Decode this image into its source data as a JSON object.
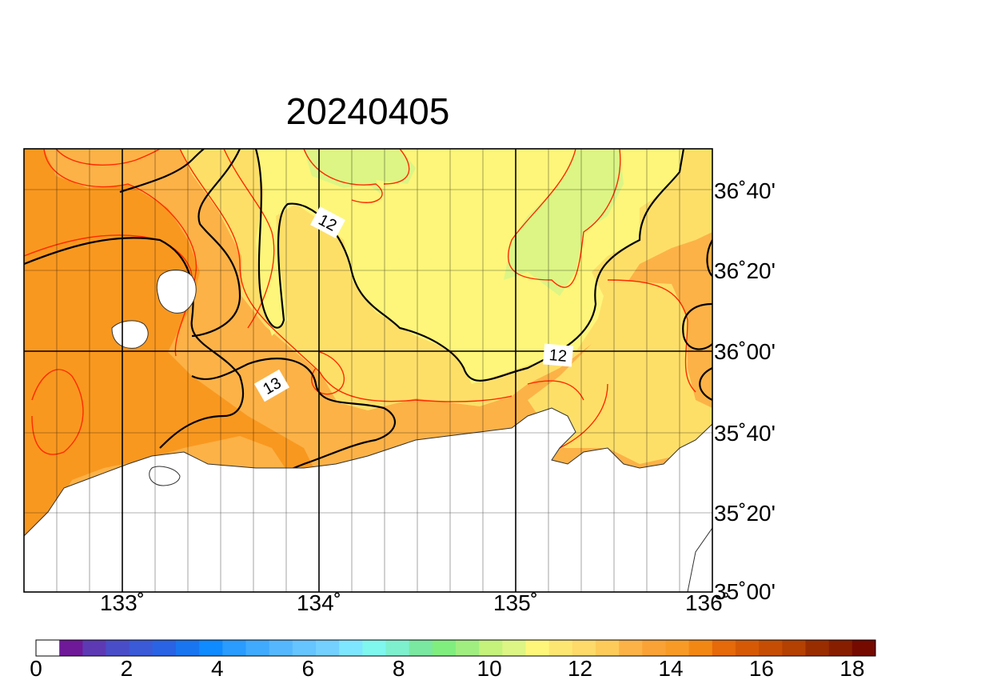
{
  "title": "20240405",
  "map": {
    "lon_range": [
      132.5,
      136
    ],
    "lat_range_deg": [
      35.0,
      36.9167
    ],
    "lon_ticks": [
      "133˚",
      "134˚",
      "135˚",
      "136˚"
    ],
    "lat_ticks": [
      "35˚00'",
      "35˚20'",
      "35˚40'",
      "36˚00'",
      "36˚20'",
      "36˚40'"
    ],
    "contour_labels": [
      "12",
      "13",
      "12"
    ],
    "colors": {
      "land": "#ffffff",
      "c11": "#dcf584",
      "c12": "#fdf67a",
      "c13": "#fddf68",
      "c14": "#fcb247",
      "c15": "#f9981f",
      "red_line": "#ff2a00",
      "black_line": "#000000"
    }
  },
  "colorbar": {
    "labels": [
      "0",
      "2",
      "4",
      "6",
      "8",
      "10",
      "12",
      "14",
      "16",
      "18"
    ],
    "colors": [
      "#ffffff",
      "#6f1998",
      "#5d3ab4",
      "#4a4dc8",
      "#3a5ad8",
      "#2a63e4",
      "#1a75f0",
      "#0f8aff",
      "#2a9bff",
      "#40aaff",
      "#55b8ff",
      "#66c4ff",
      "#73d0ff",
      "#7fe6ff",
      "#7ff6ee",
      "#7ef0ce",
      "#7ae8a0",
      "#80ee7e",
      "#a0ee80",
      "#c4f27a",
      "#dcf584",
      "#fdf67a",
      "#fde671",
      "#fdda6a",
      "#fdcb5a",
      "#fcb247",
      "#faa235",
      "#f89b26",
      "#f28714",
      "#e6690a",
      "#d65a06",
      "#c54e04",
      "#b44002",
      "#9a2d00",
      "#881e00",
      "#750a00"
    ]
  }
}
